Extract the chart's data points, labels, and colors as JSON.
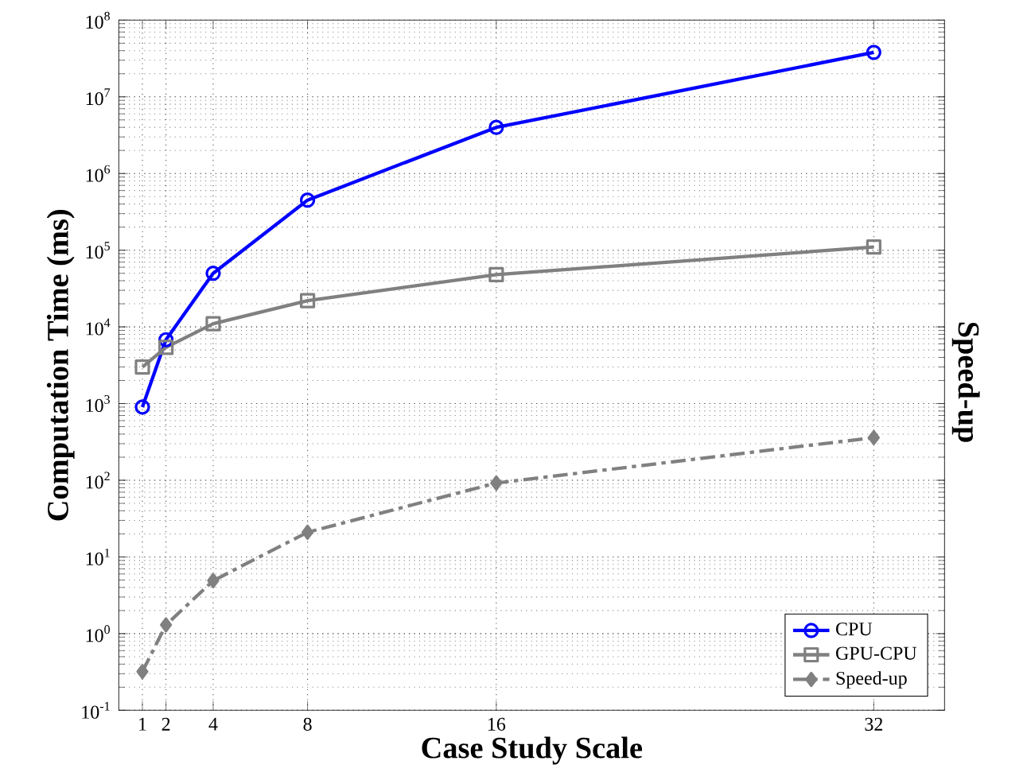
{
  "chart_data": {
    "type": "line",
    "xlabel": "Case Study Scale",
    "ylabel": "Computation Time (ms)",
    "y2label": "Speed-up",
    "log": "y",
    "grid": true,
    "legend": "bottom right",
    "xlim": [
      0,
      35
    ],
    "xticks": [
      1,
      2,
      4,
      8,
      16,
      32
    ],
    "ylim": [
      0.1,
      100000000
    ],
    "yticks": [
      {
        "value": 0.1,
        "label": "10$^{-1}$"
      },
      {
        "value": 1,
        "label": "10$^{0}$"
      },
      {
        "value": 10,
        "label": "10$^{1}$"
      },
      {
        "value": 100,
        "label": "10$^{2}$"
      },
      {
        "value": 1000,
        "label": "10$^{3}$"
      },
      {
        "value": 10000,
        "label": "10$^{4}$"
      },
      {
        "value": 100000,
        "label": "10$^{5}$"
      },
      {
        "value": 1000000,
        "label": "10$^{6}$"
      },
      {
        "value": 10000000,
        "label": "10$^{7}$"
      },
      {
        "value": 100000000,
        "label": "10$^{8}$"
      }
    ],
    "x": [
      1,
      2,
      4,
      8,
      16,
      32
    ],
    "series": [
      {
        "name": "CPU",
        "color": "#0000ff",
        "marker": "circle",
        "line_style": "solid",
        "values": [
          900,
          6800,
          50000,
          450000,
          4000000,
          38000000
        ]
      },
      {
        "name": "GPU-CPU",
        "color": "#808080",
        "marker": "square",
        "line_style": "solid",
        "values": [
          3000,
          5400,
          11000,
          22000,
          48000,
          110000
        ]
      },
      {
        "name": "Speed-up",
        "color": "#808080",
        "marker": "diamond",
        "line_style": "dashed",
        "values": [
          0.32,
          1.3,
          4.9,
          21,
          92,
          360
        ]
      }
    ]
  }
}
